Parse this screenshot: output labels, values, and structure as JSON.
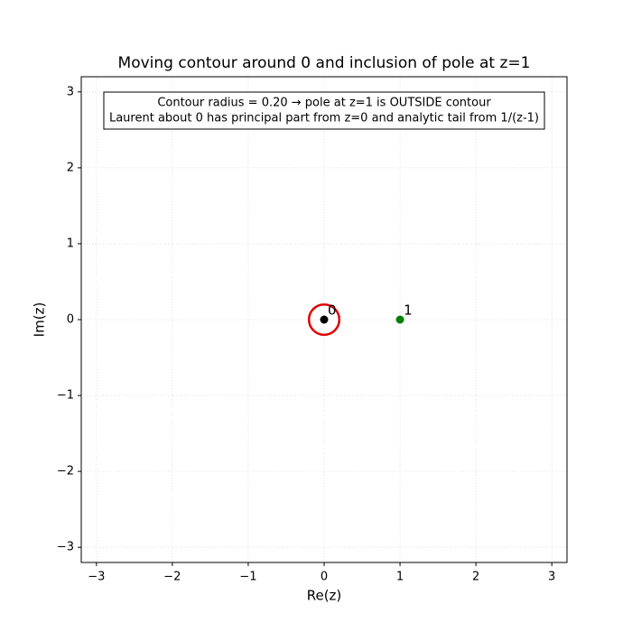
{
  "chart_data": {
    "type": "scatter",
    "title": "Moving contour around 0 and inclusion of pole at z=1",
    "xlabel": "Re(z)",
    "ylabel": "Im(z)",
    "annotation": [
      "Contour radius = 0.20 → pole at z=1 is OUTSIDE contour",
      "Laurent about 0 has principal part from z=0 and analytic tail from 1/(z-1)"
    ],
    "xlim": [
      -3.2,
      3.2
    ],
    "ylim": [
      -3.2,
      3.2
    ],
    "xticks": [
      {
        "value": -3,
        "label": "−3"
      },
      {
        "value": -2,
        "label": "−2"
      },
      {
        "value": -1,
        "label": "−1"
      },
      0,
      1,
      2,
      3
    ],
    "yticks": [
      {
        "value": -3,
        "label": "−3"
      },
      {
        "value": -2,
        "label": "−2"
      },
      {
        "value": -1,
        "label": "−1"
      },
      0,
      1,
      2,
      3
    ],
    "grid": true,
    "points": [
      {
        "x": 0,
        "y": 0,
        "label": "0",
        "color": "#000000"
      },
      {
        "x": 1,
        "y": 0,
        "label": "1",
        "color": "#008000"
      }
    ],
    "contour": {
      "center": [
        0,
        0
      ],
      "radius": 0.2,
      "color": "#e00000"
    }
  }
}
